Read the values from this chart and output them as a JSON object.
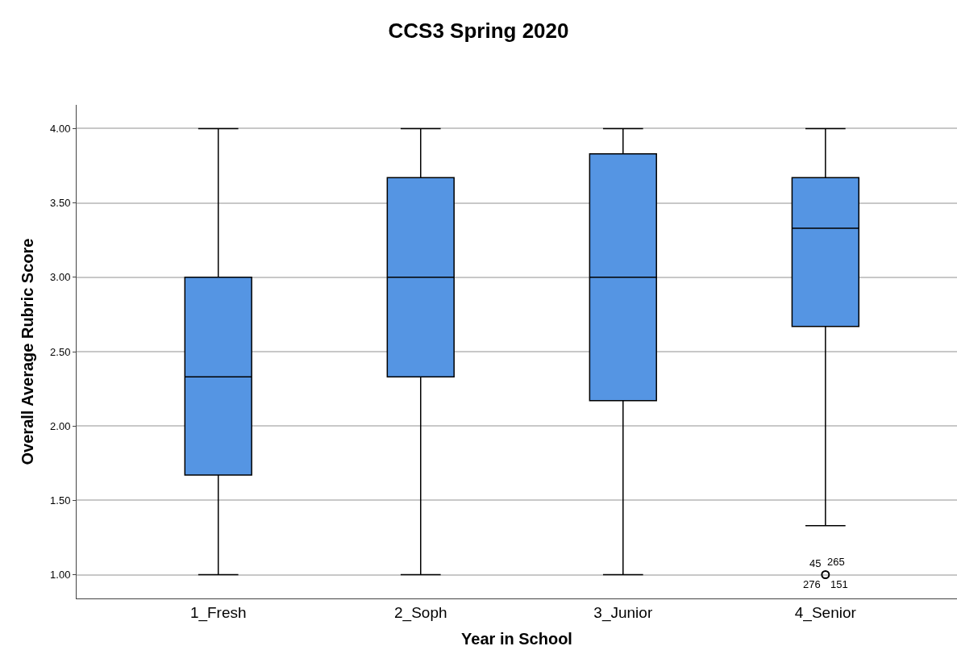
{
  "chart_data": {
    "type": "box",
    "title": "CCS3 Spring 2020",
    "xlabel": "Year in School",
    "ylabel": "Overall Average Rubric Score",
    "categories": [
      "1_Fresh",
      "2_Soph",
      "3_Junior",
      "4_Senior"
    ],
    "color": "#5595e3",
    "boxes": [
      {
        "low": 1.0,
        "q1": 1.67,
        "median": 2.33,
        "q3": 3.0,
        "high": 4.0
      },
      {
        "low": 1.0,
        "q1": 2.33,
        "median": 3.0,
        "q3": 3.67,
        "high": 4.0
      },
      {
        "low": 1.0,
        "q1": 2.17,
        "median": 3.0,
        "q3": 3.83,
        "high": 4.0
      },
      {
        "low": 1.33,
        "q1": 2.67,
        "median": 3.33,
        "q3": 3.67,
        "high": 4.0,
        "outliers": [
          1.0
        ]
      }
    ],
    "ylim": [
      0.84,
      4.16
    ],
    "yticks": [
      {
        "value": 1,
        "label": "1.00"
      },
      {
        "value": 1.5,
        "label": "1.50"
      },
      {
        "value": 2,
        "label": "2.00"
      },
      {
        "value": 2.5,
        "label": "2.50"
      },
      {
        "value": 3,
        "label": "3.00"
      },
      {
        "value": 3.5,
        "label": "3.50"
      },
      {
        "value": 4,
        "label": "4.00"
      }
    ],
    "grid": "y",
    "annotations": [
      "45",
      "265",
      "276",
      "151"
    ]
  }
}
